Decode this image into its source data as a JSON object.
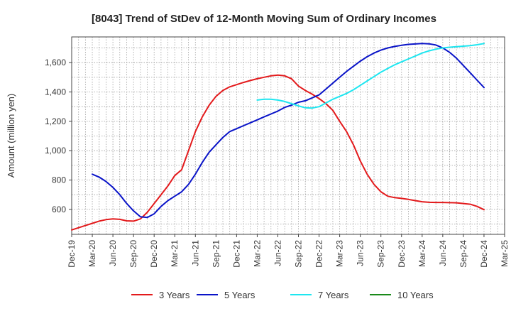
{
  "chart_data": {
    "type": "line",
    "title": "[8043]  Trend of StDev of 12-Month Moving Sum of Ordinary Incomes",
    "xlabel": "",
    "ylabel": "Amount (million yen)",
    "x_ticks": [
      "Dec-19",
      "Mar-20",
      "Jun-20",
      "Sep-20",
      "Dec-20",
      "Mar-21",
      "Jun-21",
      "Sep-21",
      "Dec-21",
      "Mar-22",
      "Jun-22",
      "Sep-22",
      "Dec-22",
      "Mar-23",
      "Jun-23",
      "Sep-23",
      "Dec-23",
      "Mar-24",
      "Jun-24",
      "Sep-24",
      "Dec-24",
      "Mar-25"
    ],
    "y_ticks": [
      600,
      800,
      1000,
      1200,
      1400,
      1600
    ],
    "ylim": [
      430,
      1775
    ],
    "grid": true,
    "legend_position": "bottom",
    "series": [
      {
        "name": "3 Years",
        "color": "#e31a1c",
        "x": [
          "Dec-19",
          "Jan-20",
          "Feb-20",
          "Mar-20",
          "Apr-20",
          "May-20",
          "Jun-20",
          "Jul-20",
          "Aug-20",
          "Sep-20",
          "Oct-20",
          "Nov-20",
          "Dec-20",
          "Jan-21",
          "Feb-21",
          "Mar-21",
          "Apr-21",
          "May-21",
          "Jun-21",
          "Jul-21",
          "Aug-21",
          "Sep-21",
          "Oct-21",
          "Nov-21",
          "Dec-21",
          "Jan-22",
          "Feb-22",
          "Mar-22",
          "Apr-22",
          "May-22",
          "Jun-22",
          "Jul-22",
          "Aug-22",
          "Sep-22",
          "Oct-22",
          "Nov-22",
          "Dec-22",
          "Jan-23",
          "Feb-23",
          "Mar-23",
          "Apr-23",
          "May-23",
          "Jun-23",
          "Jul-23",
          "Aug-23",
          "Sep-23",
          "Oct-23",
          "Nov-23",
          "Dec-23",
          "Jan-24",
          "Feb-24",
          "Mar-24",
          "Apr-24",
          "May-24",
          "Jun-24",
          "Jul-24",
          "Aug-24",
          "Sep-24",
          "Oct-24",
          "Nov-24",
          "Dec-24"
        ],
        "values": [
          460,
          475,
          490,
          505,
          520,
          530,
          535,
          532,
          522,
          520,
          535,
          580,
          640,
          700,
          760,
          830,
          870,
          1000,
          1130,
          1230,
          1310,
          1370,
          1410,
          1435,
          1450,
          1465,
          1478,
          1490,
          1500,
          1510,
          1515,
          1510,
          1490,
          1440,
          1410,
          1385,
          1355,
          1320,
          1275,
          1200,
          1130,
          1040,
          930,
          840,
          770,
          720,
          690,
          680,
          675,
          668,
          660,
          652,
          648,
          647,
          647,
          646,
          645,
          640,
          635,
          620,
          598
        ]
      },
      {
        "name": "5 Years",
        "color": "#0a14c8",
        "x": [
          "Mar-20",
          "Apr-20",
          "May-20",
          "Jun-20",
          "Jul-20",
          "Aug-20",
          "Sep-20",
          "Oct-20",
          "Nov-20",
          "Dec-20",
          "Jan-21",
          "Feb-21",
          "Mar-21",
          "Apr-21",
          "May-21",
          "Jun-21",
          "Jul-21",
          "Aug-21",
          "Sep-21",
          "Oct-21",
          "Nov-21",
          "Dec-21",
          "Jan-22",
          "Feb-22",
          "Mar-22",
          "Apr-22",
          "May-22",
          "Jun-22",
          "Jul-22",
          "Aug-22",
          "Sep-22",
          "Oct-22",
          "Nov-22",
          "Dec-22",
          "Jan-23",
          "Feb-23",
          "Mar-23",
          "Apr-23",
          "May-23",
          "Jun-23",
          "Jul-23",
          "Aug-23",
          "Sep-23",
          "Oct-23",
          "Nov-23",
          "Dec-23",
          "Jan-24",
          "Feb-24",
          "Mar-24",
          "Apr-24",
          "May-24",
          "Jun-24",
          "Jul-24",
          "Aug-24",
          "Sep-24",
          "Oct-24",
          "Nov-24",
          "Dec-24"
        ],
        "values": [
          840,
          820,
          790,
          750,
          700,
          640,
          590,
          550,
          545,
          570,
          620,
          660,
          690,
          720,
          770,
          840,
          920,
          990,
          1040,
          1090,
          1130,
          1150,
          1170,
          1190,
          1210,
          1230,
          1250,
          1270,
          1295,
          1310,
          1330,
          1340,
          1360,
          1380,
          1420,
          1460,
          1500,
          1540,
          1575,
          1610,
          1640,
          1665,
          1685,
          1700,
          1710,
          1718,
          1724,
          1727,
          1730,
          1728,
          1720,
          1700,
          1670,
          1630,
          1580,
          1530,
          1480,
          1430
        ]
      },
      {
        "name": "7 Years",
        "color": "#1ee6f0",
        "x": [
          "Mar-22",
          "Apr-22",
          "May-22",
          "Jun-22",
          "Jul-22",
          "Aug-22",
          "Sep-22",
          "Oct-22",
          "Nov-22",
          "Dec-22",
          "Jan-23",
          "Feb-23",
          "Mar-23",
          "Apr-23",
          "May-23",
          "Jun-23",
          "Jul-23",
          "Aug-23",
          "Sep-23",
          "Oct-23",
          "Nov-23",
          "Dec-23",
          "Jan-24",
          "Feb-24",
          "Mar-24",
          "Apr-24",
          "May-24",
          "Jun-24",
          "Jul-24",
          "Aug-24",
          "Sep-24",
          "Oct-24",
          "Nov-24",
          "Dec-24"
        ],
        "values": [
          1345,
          1350,
          1350,
          1345,
          1335,
          1320,
          1305,
          1292,
          1290,
          1300,
          1325,
          1350,
          1370,
          1390,
          1415,
          1445,
          1475,
          1505,
          1535,
          1560,
          1585,
          1605,
          1625,
          1645,
          1665,
          1680,
          1692,
          1700,
          1705,
          1708,
          1712,
          1716,
          1722,
          1730
        ]
      },
      {
        "name": "10 Years",
        "color": "#1a8a1a",
        "x": [],
        "values": []
      }
    ]
  }
}
